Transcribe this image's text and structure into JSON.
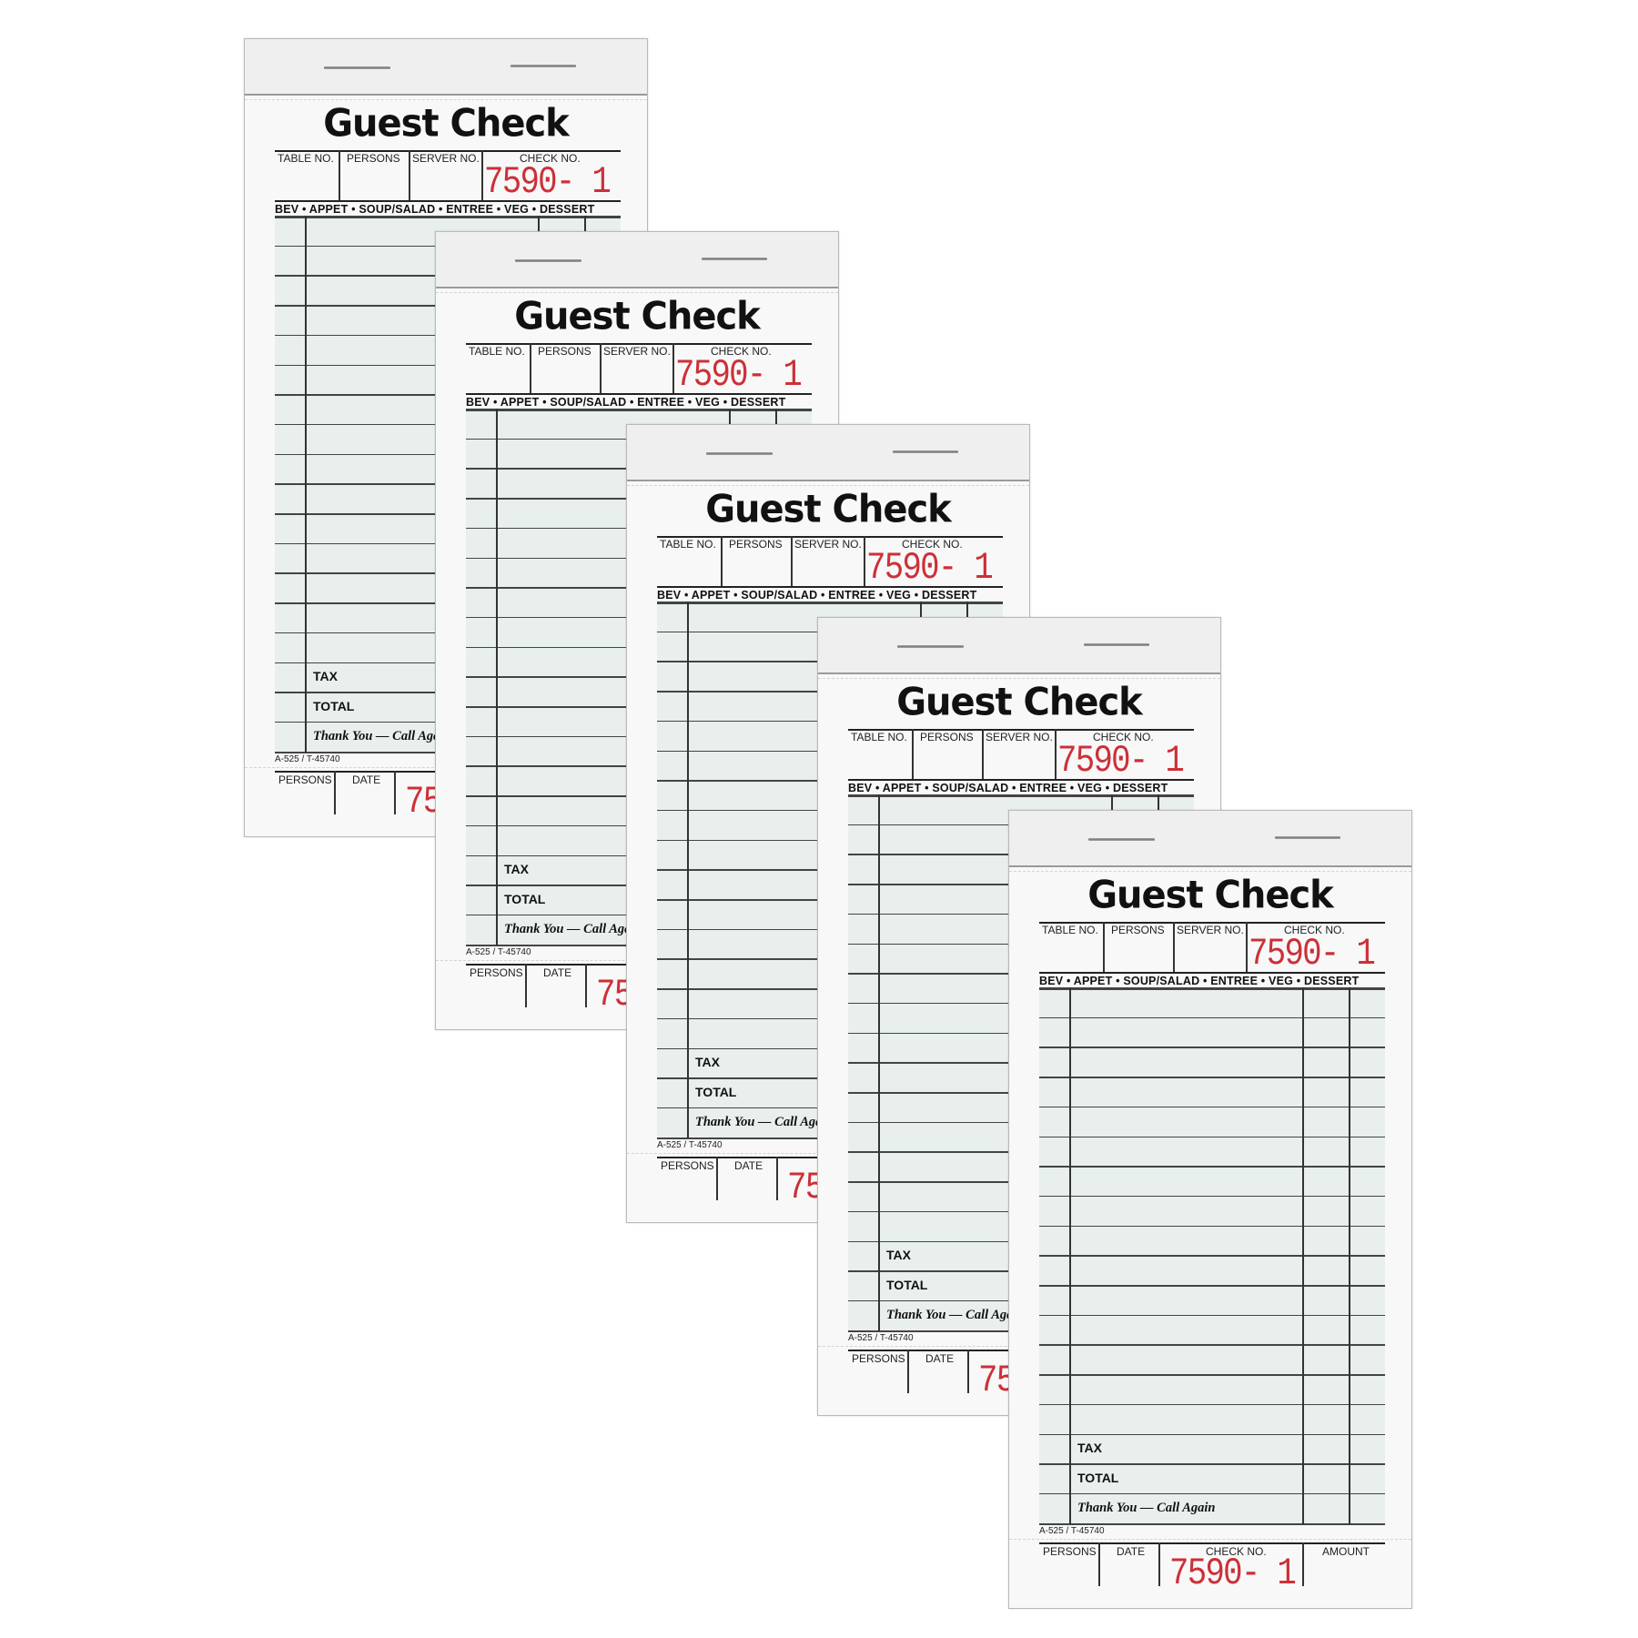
{
  "pad": {
    "title": "Guest Check",
    "header_columns": [
      "TABLE NO.",
      "PERSONS",
      "SERVER NO.",
      "CHECK NO."
    ],
    "check_number": "7590- 1",
    "categories": "BEV • APPET • SOUP/SALAD • ENTREE • VEG • DESSERT",
    "tax_label": "TAX",
    "total_label": "TOTAL",
    "thanks": "Thank You — Call Again",
    "form_code": "A-525 / T-45740",
    "stub_columns": [
      "PERSONS",
      "DATE",
      "CHECK NO.",
      "AMOUNT"
    ]
  },
  "pad_count": 5,
  "colors": {
    "check_number": "#cc3038",
    "grid_tint": "#e8efec"
  }
}
